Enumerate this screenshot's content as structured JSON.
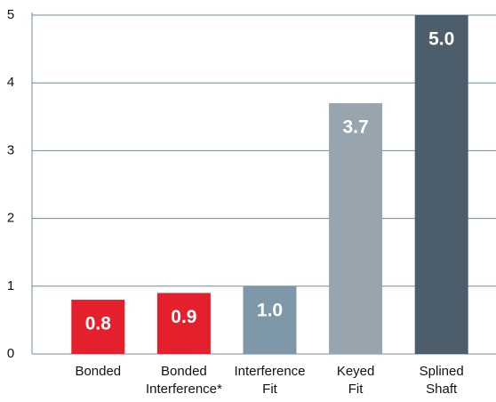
{
  "chart_data": {
    "type": "bar",
    "categories": [
      [
        "Bonded"
      ],
      [
        "Bonded",
        "Interference*"
      ],
      [
        "Interference",
        "Fit"
      ],
      [
        "Keyed",
        "Fit"
      ],
      [
        "Splined",
        "Shaft"
      ]
    ],
    "values": [
      0.8,
      0.9,
      1.0,
      3.7,
      5.0
    ],
    "value_labels": [
      "0.8",
      "0.9",
      "1.0",
      "3.7",
      "5.0"
    ],
    "colors": [
      "#e3202b",
      "#e3202b",
      "#7e98a9",
      "#98a4ae",
      "#4c5d6b"
    ],
    "ylim": [
      0,
      5
    ],
    "yticks": [
      0,
      1,
      2,
      3,
      4,
      5
    ],
    "grid": true
  }
}
